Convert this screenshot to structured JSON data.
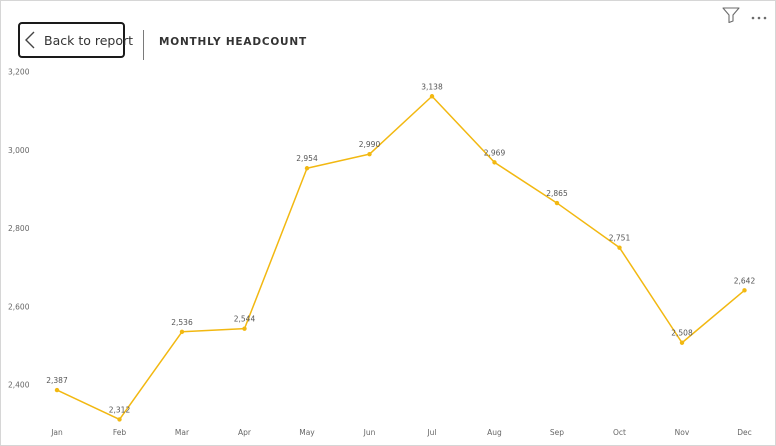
{
  "header": {
    "back_label": "Back to report",
    "title": "MONTHLY HEADCOUNT"
  },
  "icons": {
    "back": "chevron-left-icon",
    "filter": "filter-icon",
    "more": "more-options-icon"
  },
  "colors": {
    "line": "#F2B811",
    "border": "#d6d6d6"
  },
  "chart_data": {
    "type": "line",
    "categories": [
      "Jan",
      "Feb",
      "Mar",
      "Apr",
      "May",
      "Jun",
      "Jul",
      "Aug",
      "Sep",
      "Oct",
      "Nov",
      "Dec"
    ],
    "series": [
      {
        "values": [
          2387,
          2312,
          2536,
          2544,
          2954,
          2990,
          3138,
          2969,
          2865,
          2751,
          2508,
          2642
        ],
        "labels": [
          "2,387",
          "2,312",
          "2,536",
          "2,544",
          "2,954",
          "2,990",
          "3,138",
          "2,969",
          "2,865",
          "2,751",
          "2,508",
          "2,642"
        ]
      }
    ],
    "yticks": [
      2400,
      2600,
      2800,
      3000,
      3200
    ],
    "ytick_labels": [
      "2,400",
      "2,600",
      "2,800",
      "3,000",
      "3,200"
    ],
    "ylim": [
      2400,
      3200
    ],
    "grid": false,
    "title": "MONTHLY HEADCOUNT",
    "xlabel": "",
    "ylabel": ""
  }
}
